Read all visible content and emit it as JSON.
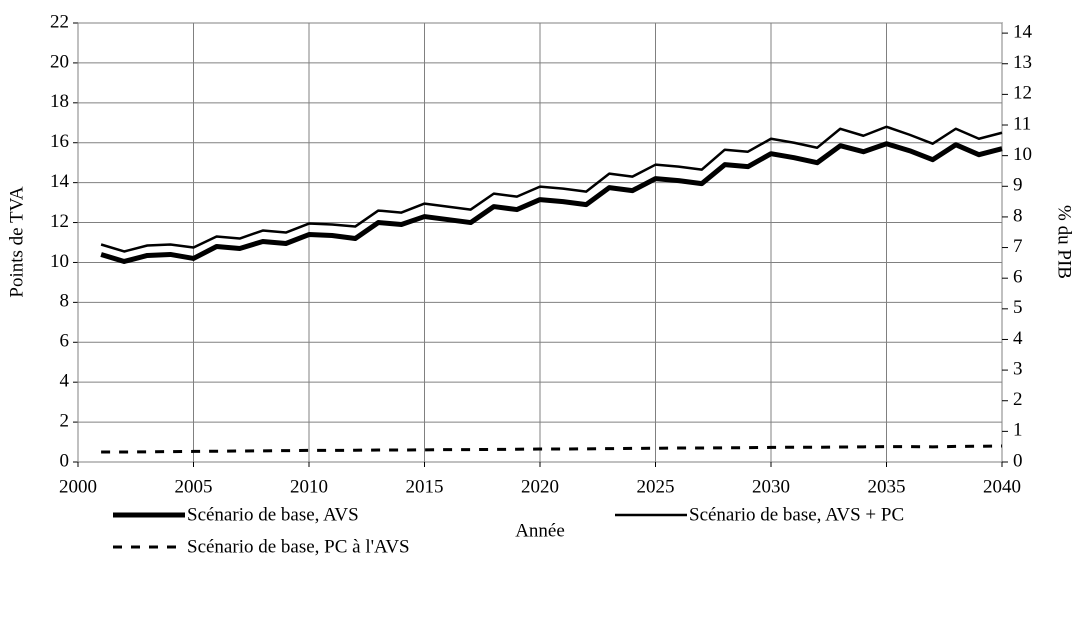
{
  "chart_data": {
    "type": "line",
    "xlabel": "Année",
    "ylabel": "Points de TVA",
    "y2label": "% du PIB",
    "x": [
      2001,
      2002,
      2003,
      2004,
      2005,
      2006,
      2007,
      2008,
      2009,
      2010,
      2011,
      2012,
      2013,
      2014,
      2015,
      2016,
      2017,
      2018,
      2019,
      2020,
      2021,
      2022,
      2023,
      2024,
      2025,
      2026,
      2027,
      2028,
      2029,
      2030,
      2031,
      2032,
      2033,
      2034,
      2035,
      2036,
      2037,
      2038,
      2039,
      2040
    ],
    "series": [
      {
        "name": "Scénario de base, AVS",
        "color": "#000000",
        "width": 5,
        "dashed": false,
        "values": [
          10.4,
          10.05,
          10.35,
          10.4,
          10.2,
          10.8,
          10.7,
          11.05,
          10.95,
          11.4,
          11.35,
          11.2,
          12.0,
          11.9,
          12.3,
          12.15,
          12.0,
          12.8,
          12.65,
          13.15,
          13.05,
          12.9,
          13.75,
          13.6,
          14.2,
          14.1,
          13.95,
          14.9,
          14.8,
          15.45,
          15.25,
          15.0,
          15.85,
          15.55,
          15.95,
          15.6,
          15.15,
          15.9,
          15.4,
          15.7
        ]
      },
      {
        "name": "Scénario de base, AVS + PC",
        "color": "#000000",
        "width": 2.5,
        "dashed": false,
        "values": [
          10.9,
          10.55,
          10.85,
          10.9,
          10.75,
          11.3,
          11.2,
          11.6,
          11.5,
          11.95,
          11.9,
          11.8,
          12.6,
          12.5,
          12.95,
          12.8,
          12.65,
          13.45,
          13.3,
          13.8,
          13.7,
          13.55,
          14.45,
          14.3,
          14.9,
          14.8,
          14.65,
          15.65,
          15.55,
          16.2,
          16.0,
          15.75,
          16.7,
          16.35,
          16.8,
          16.4,
          15.95,
          16.7,
          16.2,
          16.5
        ]
      },
      {
        "name": "Scénario de base, PC à l'AVS",
        "color": "#000000",
        "width": 3,
        "dashed": true,
        "values": [
          0.5,
          0.5,
          0.51,
          0.52,
          0.53,
          0.54,
          0.55,
          0.56,
          0.57,
          0.58,
          0.58,
          0.59,
          0.6,
          0.6,
          0.61,
          0.62,
          0.62,
          0.63,
          0.64,
          0.65,
          0.65,
          0.66,
          0.67,
          0.68,
          0.69,
          0.7,
          0.7,
          0.71,
          0.72,
          0.73,
          0.74,
          0.74,
          0.75,
          0.76,
          0.77,
          0.77,
          0.76,
          0.78,
          0.79,
          0.8
        ]
      }
    ],
    "xlim": [
      2000,
      2040
    ],
    "xticks": [
      2000,
      2005,
      2010,
      2015,
      2020,
      2025,
      2030,
      2035,
      2040
    ],
    "ylim": [
      0,
      22
    ],
    "yticks": [
      0,
      2,
      4,
      6,
      8,
      10,
      12,
      14,
      16,
      18,
      20,
      22
    ],
    "y2lim": [
      0,
      14.33
    ],
    "y2ticks": [
      0,
      1,
      2,
      3,
      4,
      5,
      6,
      7,
      8,
      9,
      10,
      11,
      12,
      13,
      14
    ],
    "grid": true
  }
}
